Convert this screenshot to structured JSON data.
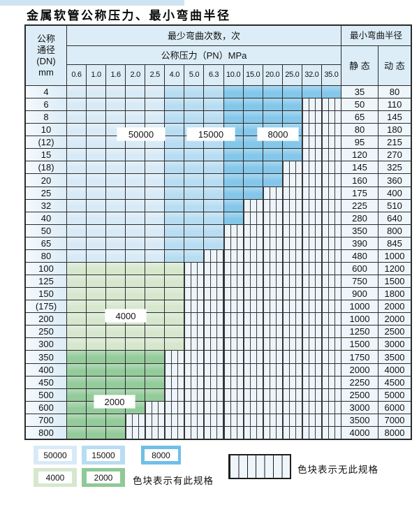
{
  "page": {
    "title": "金属软管公称压力、最小弯曲半径"
  },
  "table": {
    "corner_lines": [
      "公称",
      "通径",
      "(DN)",
      "mm"
    ],
    "cycles_header": "最少弯曲次数，次",
    "pressure_header": "公称压力（PN）MPa",
    "radius_header": "最小弯曲半径",
    "static_header": "静 态",
    "dynamic_header": "动 态",
    "pressure_columns": [
      "0.6",
      "1.0",
      "1.6",
      "2.0",
      "2.5",
      "4.0",
      "5.0",
      "6.3",
      "10.0",
      "15.0",
      "20.0",
      "25.0",
      "32.0",
      "35.0"
    ],
    "cycle_bands": [
      {
        "cycles": "50000",
        "col_start": 0,
        "col_end": 4
      },
      {
        "cycles": "15000",
        "col_start": 5,
        "col_end": 7
      },
      {
        "cycles": "8000",
        "col_start": 8,
        "col_end": 13
      }
    ],
    "rows": [
      {
        "dn": "4",
        "colored_cols": 14,
        "zone": "blue",
        "static": "35",
        "dynamic": "80"
      },
      {
        "dn": "6",
        "colored_cols": 12,
        "zone": "blue",
        "static": "50",
        "dynamic": "110"
      },
      {
        "dn": "8",
        "colored_cols": 12,
        "zone": "blue",
        "static": "65",
        "dynamic": "145"
      },
      {
        "dn": "10",
        "colored_cols": 12,
        "zone": "blue",
        "static": "80",
        "dynamic": "180"
      },
      {
        "dn": "(12)",
        "colored_cols": 12,
        "zone": "blue",
        "static": "95",
        "dynamic": "215"
      },
      {
        "dn": "15",
        "colored_cols": 12,
        "zone": "blue",
        "static": "120",
        "dynamic": "270"
      },
      {
        "dn": "(18)",
        "colored_cols": 11,
        "zone": "blue",
        "static": "145",
        "dynamic": "325"
      },
      {
        "dn": "20",
        "colored_cols": 11,
        "zone": "blue",
        "static": "160",
        "dynamic": "360"
      },
      {
        "dn": "25",
        "colored_cols": 10,
        "zone": "blue",
        "static": "175",
        "dynamic": "400"
      },
      {
        "dn": "32",
        "colored_cols": 9,
        "zone": "blue",
        "static": "225",
        "dynamic": "510"
      },
      {
        "dn": "40",
        "colored_cols": 9,
        "zone": "blue",
        "static": "280",
        "dynamic": "640"
      },
      {
        "dn": "50",
        "colored_cols": 8,
        "zone": "blue",
        "static": "350",
        "dynamic": "800"
      },
      {
        "dn": "65",
        "colored_cols": 8,
        "zone": "blue",
        "static": "390",
        "dynamic": "845"
      },
      {
        "dn": "80",
        "colored_cols": 7,
        "zone": "blue",
        "static": "480",
        "dynamic": "1000"
      },
      {
        "dn": "100",
        "colored_cols": 6,
        "zone": "green4000",
        "static": "600",
        "dynamic": "1200"
      },
      {
        "dn": "125",
        "colored_cols": 6,
        "zone": "green4000",
        "static": "750",
        "dynamic": "1500"
      },
      {
        "dn": "150",
        "colored_cols": 6,
        "zone": "green4000",
        "static": "900",
        "dynamic": "1800"
      },
      {
        "dn": "(175)",
        "colored_cols": 6,
        "zone": "green4000",
        "static": "1000",
        "dynamic": "2000"
      },
      {
        "dn": "200",
        "colored_cols": 6,
        "zone": "green4000",
        "static": "1000",
        "dynamic": "2000"
      },
      {
        "dn": "250",
        "colored_cols": 6,
        "zone": "green4000",
        "static": "1250",
        "dynamic": "2500"
      },
      {
        "dn": "300",
        "colored_cols": 6,
        "zone": "green4000",
        "static": "1500",
        "dynamic": "3000"
      },
      {
        "dn": "350",
        "colored_cols": 5,
        "zone": "green2000",
        "static": "1750",
        "dynamic": "3500"
      },
      {
        "dn": "400",
        "colored_cols": 5,
        "zone": "green2000",
        "static": "2000",
        "dynamic": "4000"
      },
      {
        "dn": "450",
        "colored_cols": 5,
        "zone": "green2000",
        "static": "2250",
        "dynamic": "4500"
      },
      {
        "dn": "500",
        "colored_cols": 5,
        "zone": "green2000",
        "static": "2500",
        "dynamic": "5000"
      },
      {
        "dn": "600",
        "colored_cols": 4,
        "zone": "green2000",
        "static": "3000",
        "dynamic": "6000"
      },
      {
        "dn": "700",
        "colored_cols": 3,
        "zone": "green2000",
        "static": "3500",
        "dynamic": "7000"
      },
      {
        "dn": "800",
        "colored_cols": 3,
        "zone": "green2000",
        "static": "4000",
        "dynamic": "8000"
      }
    ]
  },
  "overlay_labels": {
    "b50000": "50000",
    "b15000": "15000",
    "b8000": "8000",
    "g4000": "4000",
    "g2000": "2000"
  },
  "legend": {
    "swatches": [
      {
        "label": "50000",
        "color": "#d8eaf6"
      },
      {
        "label": "15000",
        "color": "#b8ddf2"
      },
      {
        "label": "8000",
        "color": "#6fbfe7"
      },
      {
        "label": "4000",
        "color": "#d6e7ce"
      },
      {
        "label": "2000",
        "color": "#8fc996"
      }
    ],
    "available_caption": "色块表示有此规格",
    "unavailable_caption": "色块表示无此规格"
  },
  "colors": {
    "cycles_50000": "#d8eaf6",
    "cycles_15000": "#b8ddf2",
    "cycles_8000": "#84c7ea",
    "cycles_4000": "#d6e7ce",
    "cycles_2000": "#94cb9b",
    "hatch_bg": "#edf4fa",
    "header_bg": "#dcedf7",
    "grid_line": "#2b2b2b"
  }
}
